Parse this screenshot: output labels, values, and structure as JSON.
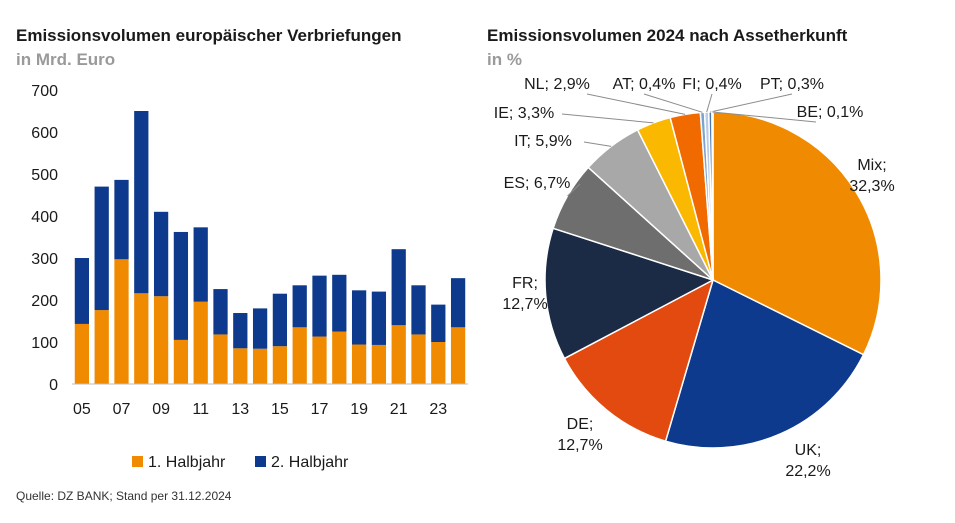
{
  "left_title": "Emissionsvolumen europäischer Verbriefungen",
  "left_subtitle": "in Mrd. Euro",
  "right_title": "Emissionsvolumen 2024 nach Assetherkunft",
  "right_subtitle": "in %",
  "source": "Quelle: DZ BANK; Stand per 31.12.2024",
  "colors": {
    "orange": "#F08A00",
    "navy": "#0D3A8C"
  },
  "chart_data": [
    {
      "type": "bar",
      "stacked": true,
      "x": [
        2005,
        2006,
        2007,
        2008,
        2009,
        2010,
        2011,
        2012,
        2013,
        2014,
        2015,
        2016,
        2017,
        2018,
        2019,
        2020,
        2021,
        2022,
        2023,
        2024
      ],
      "xticklabels": [
        "05",
        "07",
        "09",
        "11",
        "13",
        "15",
        "17",
        "19",
        "21",
        "23"
      ],
      "ylim": [
        0,
        700
      ],
      "yticks": [
        0,
        100,
        200,
        300,
        400,
        500,
        600,
        700
      ],
      "grid": false,
      "legend_position": "bottom",
      "series": [
        {
          "name": "1. Halbjahr",
          "color": "#F08A00",
          "values": [
            143,
            176,
            297,
            216,
            209,
            105,
            196,
            118,
            85,
            84,
            90,
            135,
            113,
            125,
            94,
            93,
            140,
            118,
            100,
            135
          ]
        },
        {
          "name": "2. Halbjahr",
          "color": "#0D3A8C",
          "values": [
            157,
            294,
            189,
            434,
            201,
            257,
            177,
            108,
            84,
            96,
            125,
            100,
            145,
            135,
            129,
            127,
            181,
            117,
            89,
            117
          ]
        }
      ]
    },
    {
      "type": "pie",
      "slices": [
        {
          "label": "Mix;",
          "value_label": "32,3%",
          "value": 32.3,
          "color": "#F08A00"
        },
        {
          "label": "UK;",
          "value_label": "22,2%",
          "value": 22.2,
          "color": "#0D3A8C"
        },
        {
          "label": "DE;",
          "value_label": "12,7%",
          "value": 12.7,
          "color": "#E34A0F"
        },
        {
          "label": "FR;",
          "value_label": "12,7%",
          "value": 12.7,
          "color": "#1B2A45"
        },
        {
          "label": "ES; 6,7%",
          "value": 6.7,
          "color": "#6E6E6E"
        },
        {
          "label": "IT; 5,9%",
          "value": 5.9,
          "color": "#A8A8A8"
        },
        {
          "label": "IE; 3,3%",
          "value": 3.3,
          "color": "#FBB800"
        },
        {
          "label": "NL; 2,9%",
          "value": 2.9,
          "color": "#F06A00"
        },
        {
          "label": "AT; 0,4%",
          "value": 0.4,
          "color": "#7FA3CC"
        },
        {
          "label": "FI; 0,4%",
          "value": 0.4,
          "color": "#B9CEE6"
        },
        {
          "label": "PT; 0,3%",
          "value": 0.3,
          "color": "#4A78B6"
        },
        {
          "label": "BE; 0,1%",
          "value": 0.1,
          "color": "#1E4FA0"
        }
      ]
    }
  ]
}
